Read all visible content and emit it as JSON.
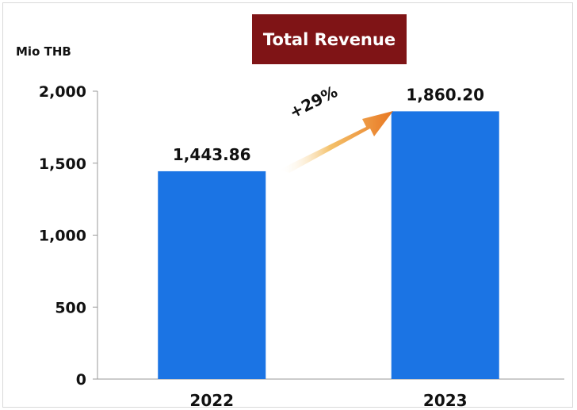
{
  "chart_data": {
    "type": "bar",
    "title": "Total Revenue",
    "ylabel": "Mio THB",
    "categories": [
      "2022",
      "2023"
    ],
    "values": [
      1443.86,
      1860.2
    ],
    "value_labels": [
      "1,443.86",
      "1,860.20"
    ],
    "yticks": [
      0,
      500,
      1000,
      1500,
      2000
    ],
    "ytick_labels": [
      "0",
      "500",
      "1,000",
      "1,500",
      "2,000"
    ],
    "ylim": [
      0,
      2000
    ],
    "grid": false,
    "annotation": "+29%",
    "colors": {
      "bar": "#1b74e4",
      "title_background": "#7f1416",
      "arrow": "#e87722"
    }
  }
}
